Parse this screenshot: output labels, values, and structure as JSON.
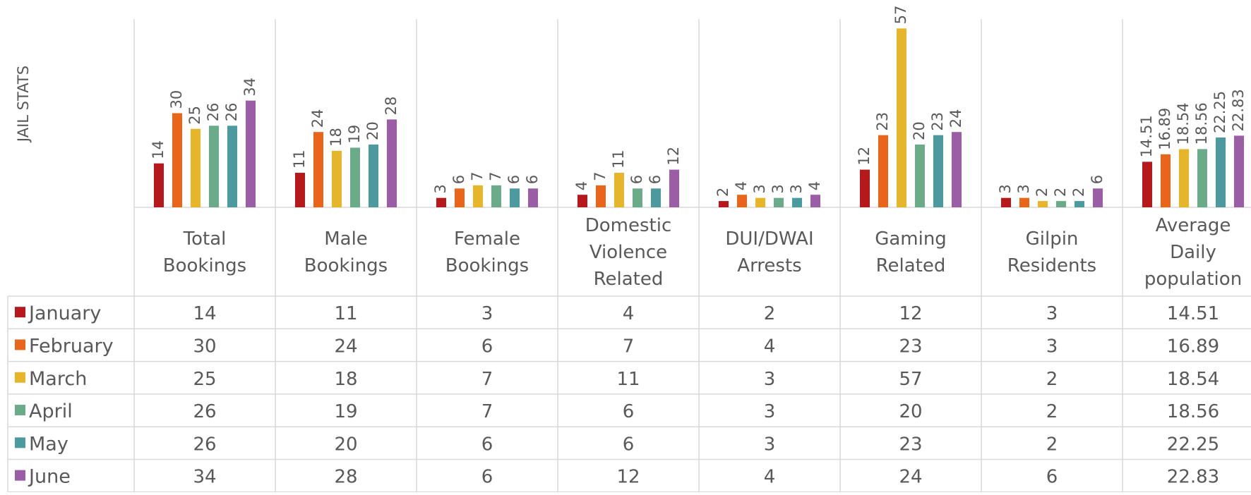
{
  "chart_data": {
    "type": "bar",
    "y_axis_label": "JAIL STATS",
    "categories": [
      "Total Bookings",
      "Male Bookings",
      "Female Bookings",
      "Domestic Violence Related",
      "DUI/DWAI Arrests",
      "Gaming Related",
      "Gilpin Residents",
      "Average Daily population"
    ],
    "ylim": [
      0,
      60
    ],
    "data_table": true,
    "series": [
      {
        "name": "January",
        "color": "#b5191b",
        "values": [
          14,
          11,
          3,
          4,
          2,
          12,
          3,
          14.51
        ]
      },
      {
        "name": "February",
        "color": "#e8651a",
        "values": [
          30,
          24,
          6,
          7,
          4,
          23,
          3,
          16.89
        ]
      },
      {
        "name": "March",
        "color": "#e6b52a",
        "values": [
          25,
          18,
          7,
          11,
          3,
          57,
          2,
          18.54
        ]
      },
      {
        "name": "April",
        "color": "#6aab8a",
        "values": [
          26,
          19,
          7,
          6,
          3,
          20,
          2,
          18.56
        ]
      },
      {
        "name": "May",
        "color": "#4a9a9f",
        "values": [
          26,
          20,
          6,
          6,
          3,
          23,
          2,
          22.25
        ]
      },
      {
        "name": "June",
        "color": "#9b5ea6",
        "values": [
          34,
          28,
          6,
          12,
          4,
          24,
          6,
          22.83
        ]
      }
    ]
  }
}
